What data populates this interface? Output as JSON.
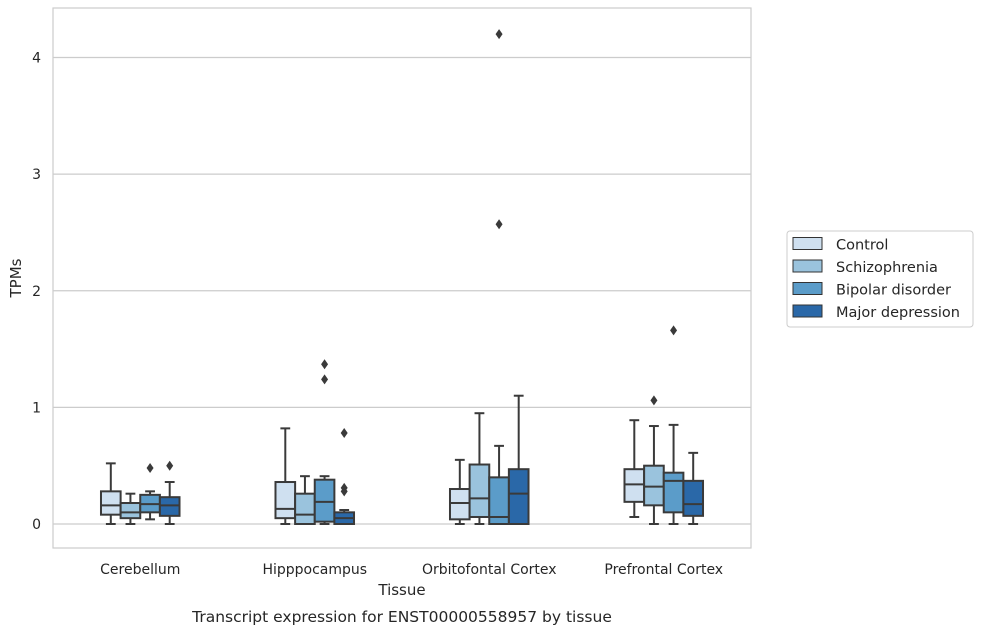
{
  "chart_data": {
    "type": "box",
    "caption": "Transcript expression for ENST00000558957 by tissue",
    "xlabel": "Tissue",
    "ylabel": "TPMs",
    "ylim": [
      -0.2,
      4.42
    ],
    "yticks": [
      0,
      1,
      2,
      3,
      4
    ],
    "grid": true,
    "legend_position": "right",
    "categories": [
      "Cerebellum",
      "Hipppocampus",
      "Orbitofontal Cortex",
      "Prefrontal Cortex"
    ],
    "series": [
      {
        "name": "Control",
        "color": "#cfe0f0",
        "boxes": [
          {
            "whislo": 0.0,
            "q1": 0.08,
            "med": 0.16,
            "q3": 0.28,
            "whishi": 0.52,
            "fliers": []
          },
          {
            "whislo": 0.0,
            "q1": 0.05,
            "med": 0.13,
            "q3": 0.36,
            "whishi": 0.82,
            "fliers": []
          },
          {
            "whislo": 0.0,
            "q1": 0.04,
            "med": 0.18,
            "q3": 0.3,
            "whishi": 0.55,
            "fliers": []
          },
          {
            "whislo": 0.06,
            "q1": 0.19,
            "med": 0.34,
            "q3": 0.47,
            "whishi": 0.89,
            "fliers": []
          }
        ]
      },
      {
        "name": "Schizophrenia",
        "color": "#9ac3dd",
        "boxes": [
          {
            "whislo": 0.0,
            "q1": 0.05,
            "med": 0.1,
            "q3": 0.18,
            "whishi": 0.26,
            "fliers": []
          },
          {
            "whislo": 0.0,
            "q1": 0.0,
            "med": 0.08,
            "q3": 0.26,
            "whishi": 0.41,
            "fliers": []
          },
          {
            "whislo": 0.0,
            "q1": 0.06,
            "med": 0.22,
            "q3": 0.51,
            "whishi": 0.95,
            "fliers": []
          },
          {
            "whislo": 0.0,
            "q1": 0.16,
            "med": 0.32,
            "q3": 0.5,
            "whishi": 0.84,
            "fliers": [
              1.06
            ]
          }
        ]
      },
      {
        "name": "Bipolar disorder",
        "color": "#5b9cc9",
        "boxes": [
          {
            "whislo": 0.04,
            "q1": 0.1,
            "med": 0.17,
            "q3": 0.25,
            "whishi": 0.28,
            "fliers": [
              0.48
            ]
          },
          {
            "whislo": 0.0,
            "q1": 0.02,
            "med": 0.19,
            "q3": 0.38,
            "whishi": 0.41,
            "fliers": [
              1.24,
              1.37
            ]
          },
          {
            "whislo": 0.0,
            "q1": 0.0,
            "med": 0.06,
            "q3": 0.4,
            "whishi": 0.67,
            "fliers": [
              2.57,
              4.2
            ]
          },
          {
            "whislo": 0.0,
            "q1": 0.1,
            "med": 0.37,
            "q3": 0.44,
            "whishi": 0.85,
            "fliers": [
              1.66
            ]
          }
        ]
      },
      {
        "name": "Major depression",
        "color": "#2a68a8",
        "boxes": [
          {
            "whislo": 0.0,
            "q1": 0.07,
            "med": 0.16,
            "q3": 0.23,
            "whishi": 0.36,
            "fliers": [
              0.5
            ]
          },
          {
            "whislo": 0.0,
            "q1": 0.0,
            "med": 0.05,
            "q3": 0.1,
            "whishi": 0.12,
            "fliers": [
              0.28,
              0.31,
              0.78
            ]
          },
          {
            "whislo": 0.0,
            "q1": 0.0,
            "med": 0.26,
            "q3": 0.47,
            "whishi": 1.1,
            "fliers": []
          },
          {
            "whislo": 0.0,
            "q1": 0.07,
            "med": 0.17,
            "q3": 0.37,
            "whishi": 0.61,
            "fliers": []
          }
        ]
      }
    ]
  }
}
